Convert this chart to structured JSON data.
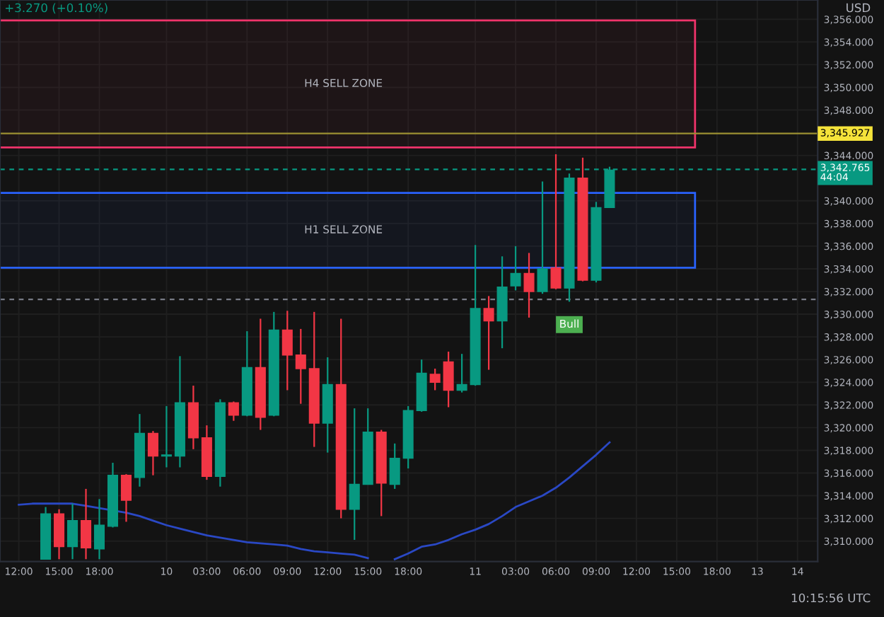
{
  "chart_data": {
    "type": "candlestick",
    "categories": [
      "12:00",
      null,
      null,
      "15:00",
      null,
      null,
      "18:00",
      null,
      null,
      null,
      null,
      "10",
      null,
      null,
      "03:00",
      null,
      null,
      "06:00",
      null,
      null,
      "09:00",
      null,
      null,
      "12:00",
      null,
      null,
      "15:00",
      null,
      null,
      "18:00",
      null,
      null,
      null,
      null,
      "11",
      null,
      null,
      "03:00",
      null,
      null,
      "06:00",
      null,
      null,
      "09:00",
      null,
      null,
      "12:00",
      null,
      null,
      "15:00",
      null,
      null,
      "18:00",
      null,
      null,
      "13",
      null,
      null,
      "14",
      null
    ],
    "ohlc": [
      null,
      null,
      [
        3308.4,
        3313.0,
        3308.4,
        3312.4
      ],
      [
        3312.4,
        3312.8,
        3308.4,
        3309.5
      ],
      [
        3309.5,
        3313.3,
        3308.4,
        3311.8
      ],
      [
        3311.8,
        3314.6,
        3308.4,
        3309.4
      ],
      [
        3309.3,
        3313.7,
        3308.4,
        3311.4
      ],
      [
        3311.3,
        3316.9,
        3311.2,
        3315.8
      ],
      [
        3315.8,
        3315.9,
        3311.7,
        3313.6
      ],
      [
        3315.6,
        3321.2,
        3314.8,
        3319.5
      ],
      [
        3319.5,
        3319.7,
        3315.8,
        3317.5
      ],
      [
        3317.5,
        3321.9,
        3316.5,
        3317.6
      ],
      [
        3317.5,
        3326.3,
        3316.5,
        3322.2
      ],
      [
        3322.2,
        3323.7,
        3318.1,
        3319.1
      ],
      [
        3319.1,
        3320.2,
        3315.4,
        3315.7
      ],
      [
        3315.7,
        3322.5,
        3314.8,
        3322.2
      ],
      [
        3322.2,
        3322.3,
        3320.6,
        3321.1
      ],
      [
        3321.1,
        3328.5,
        3321.0,
        3325.3
      ],
      [
        3325.3,
        3329.6,
        3319.8,
        3320.9
      ],
      [
        3321.1,
        3330.2,
        3321.0,
        3328.6
      ],
      [
        3328.6,
        3330.3,
        3323.3,
        3326.4
      ],
      [
        3326.4,
        3328.7,
        3322.1,
        3325.2
      ],
      [
        3325.2,
        3330.2,
        3318.3,
        3320.4
      ],
      [
        3320.4,
        3326.2,
        3317.8,
        3323.8
      ],
      [
        3323.8,
        3329.6,
        3312.0,
        3312.8
      ],
      [
        3312.8,
        3321.7,
        3310.1,
        3315.0
      ],
      [
        3315.0,
        3321.7,
        3315.0,
        3319.6
      ],
      [
        3319.6,
        3319.8,
        3312.2,
        3315.1
      ],
      [
        3315.0,
        3318.6,
        3314.6,
        3317.3
      ],
      [
        3317.3,
        3321.9,
        3316.4,
        3321.5
      ],
      [
        3321.5,
        3326.0,
        3321.4,
        3324.8
      ],
      [
        3324.7,
        3325.2,
        3323.3,
        3324.0
      ],
      [
        3325.8,
        3326.7,
        3321.8,
        3323.3
      ],
      [
        3323.3,
        3326.5,
        3323.1,
        3323.8
      ],
      [
        3323.8,
        3336.1,
        3323.7,
        3330.5
      ],
      [
        3330.5,
        3331.6,
        3325.1,
        3329.4
      ],
      [
        3329.4,
        3335.1,
        3327.0,
        3332.4
      ],
      [
        3332.5,
        3336.0,
        3332.1,
        3333.6
      ],
      [
        3333.6,
        3335.4,
        3329.7,
        3332.0
      ],
      [
        3332.0,
        3341.7,
        3331.8,
        3334.0
      ],
      [
        3334.1,
        3344.1,
        3332.2,
        3332.3
      ],
      [
        3332.3,
        3342.4,
        3331.1,
        3342.0
      ],
      [
        3342.0,
        3343.8,
        3332.9,
        3333.0
      ],
      [
        3333.0,
        3339.9,
        3332.8,
        3339.4
      ],
      [
        3339.4,
        3343.0,
        3339.4,
        3342.7
      ],
      null,
      null,
      null,
      null,
      null,
      null,
      null,
      null,
      null,
      null,
      null,
      null,
      null,
      null,
      null
    ],
    "colors": [
      null,
      null,
      "#089981",
      "#f23645",
      "#089981",
      "#f23645",
      "#089981",
      "#089981",
      "#f23645",
      "#089981",
      "#f23645",
      "#089981",
      "#089981",
      "#f23645",
      "#f23645",
      "#089981",
      "#f23645",
      "#089981",
      "#f23645",
      "#089981",
      "#f23645",
      "#f23645",
      "#f23645",
      "#089981",
      "#f23645",
      "#089981",
      "#089981",
      "#f23645",
      "#089981",
      "#089981",
      "#089981",
      "#f23645",
      "#f23645",
      "#089981",
      "#089981",
      "#f23645",
      "#089981",
      "#089981",
      "#f23645",
      "#089981",
      "#f23645",
      "#089981",
      "#f23645",
      "#089981",
      "#089981",
      null,
      null,
      null,
      null,
      null,
      null,
      null,
      null,
      null,
      null,
      null,
      null,
      null,
      null,
      null
    ],
    "series": [
      {
        "type": "line",
        "color": "#2a48c4",
        "values": [
          3313.2,
          3313.3,
          3313.3,
          3313.3,
          3313.3,
          3313.1,
          3312.9,
          3312.7,
          3312.5,
          3312.2,
          3311.8,
          3311.4,
          3311.1,
          3310.8,
          3310.5,
          3310.3,
          3310.1,
          3309.9,
          3309.8,
          3309.7,
          3309.6,
          3309.3,
          3309.1,
          3309.0,
          3308.9,
          3308.8,
          3308.5,
          null,
          3308.4,
          3308.9,
          3309.5,
          3309.7,
          3310.1,
          3310.6,
          3311.0,
          3311.5,
          3312.2,
          3313.0,
          3313.5,
          3314.0,
          3314.7,
          3315.6,
          3316.6,
          3317.6,
          3318.7,
          null,
          null,
          null,
          null,
          null,
          null,
          null,
          null,
          null,
          null,
          null,
          null,
          null,
          null,
          null
        ]
      }
    ],
    "ylim": [
      3308.2,
      3357.7
    ],
    "yticks": [
      {
        "value": 3310,
        "label": "3,310.000"
      },
      {
        "value": 3312,
        "label": "3,312.000"
      },
      {
        "value": 3314,
        "label": "3,314.000"
      },
      {
        "value": 3316,
        "label": "3,316.000"
      },
      {
        "value": 3318,
        "label": "3,318.000"
      },
      {
        "value": 3320,
        "label": "3,320.000"
      },
      {
        "value": 3322,
        "label": "3,322.000"
      },
      {
        "value": 3324,
        "label": "3,324.000"
      },
      {
        "value": 3326,
        "label": "3,326.000"
      },
      {
        "value": 3328,
        "label": "3,328.000"
      },
      {
        "value": 3330,
        "label": "3,330.000"
      },
      {
        "value": 3332,
        "label": "3,332.000"
      },
      {
        "value": 3334,
        "label": "3,334.000"
      },
      {
        "value": 3336,
        "label": "3,336.000"
      },
      {
        "value": 3338,
        "label": "3,338.000"
      },
      {
        "value": 3340,
        "label": "3,340.000"
      },
      {
        "value": 3344,
        "label": "3,344.000"
      },
      {
        "value": 3348,
        "label": "3,348.000"
      },
      {
        "value": 3350,
        "label": "3,350.000"
      },
      {
        "value": 3352,
        "label": "3,352.000"
      },
      {
        "value": 3354,
        "label": "3,354.000"
      },
      {
        "value": 3356,
        "label": "3,356.000"
      }
    ],
    "grid": true,
    "bands": [
      {
        "axis": "y",
        "from": 3344.7,
        "to": 3355.9,
        "label": "H4 SELL ZONE",
        "color": "#f0336a"
      },
      {
        "axis": "y",
        "from": 3334.1,
        "to": 3340.7,
        "label": "H1 SELL ZONE",
        "color": "#2962ff"
      }
    ],
    "ref_lines": [
      {
        "axis": "y",
        "value": 3345.927,
        "label": "3,345.927",
        "color": "#9c9132",
        "line_style": "solid"
      },
      {
        "axis": "y",
        "value": 3342.765,
        "label": "3,342.765\n44:04",
        "color": "#089981",
        "line_style": "dashed"
      },
      {
        "axis": "y",
        "value": 3331.3,
        "color": "#787b86",
        "line_style": "dashed"
      }
    ],
    "annotations": [
      "+3.270 (+0.10%)",
      "USD",
      "10:15:56 UTC",
      {
        "text": "Bull",
        "y": 3331.1
      }
    ]
  }
}
